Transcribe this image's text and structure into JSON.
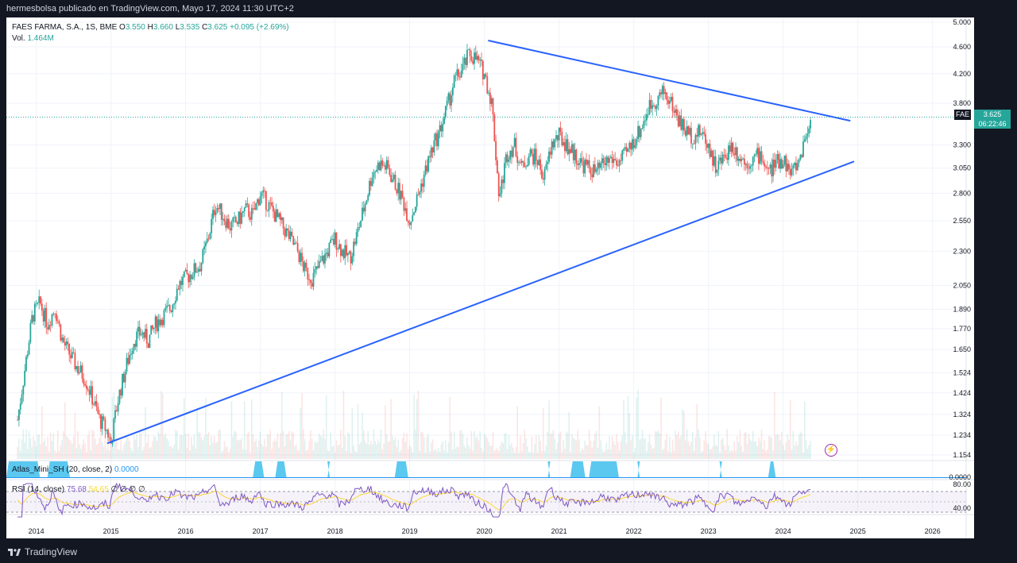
{
  "header": {
    "published": "hermesbolsa publicado en TradingView.com, Mayo 17, 2024 11:30 UTC+2"
  },
  "legend": {
    "title": "FAES FARMA, S.A., 1S, BME",
    "o_label": "O",
    "o": "3.550",
    "h_label": "H",
    "h": "3.660",
    "l_label": "L",
    "l": "3.535",
    "c_label": "C",
    "c": "3.625",
    "change": "+0.095 (+2.69%)",
    "vol_label": "Vol.",
    "vol": "1.464M"
  },
  "price_flag": {
    "symbol": "FAE",
    "price": "3.625",
    "countdown": "06:22:46"
  },
  "indicators": {
    "atlas": {
      "label": "Atlas_Mini_SH (20, close, 2)",
      "value": "0.0000",
      "axis": "0.0000"
    },
    "rsi": {
      "label": "RSI (14, close)",
      "rsi_value": "75.68",
      "ma_value": "54.65",
      "na_values": "∅ ∅ ∅ ∅",
      "axis_top": "80.00",
      "axis_bottom": "40.00"
    }
  },
  "footer": {
    "brand": "TradingView"
  },
  "colors": {
    "up": "#26a69a",
    "down": "#ef5350",
    "trendline": "#2962ff",
    "atlas": "#5bc8f0",
    "rsi": "#7e57c2",
    "rsi_ma": "#fdd835",
    "price_dotted": "#26a69a"
  },
  "chart_data": {
    "type": "candlestick",
    "title": "FAES FARMA, S.A., 1S, BME",
    "scale": "log",
    "y_ticks": [
      "5.000",
      "4.600",
      "4.200",
      "3.800",
      "3.300",
      "3.050",
      "2.800",
      "2.550",
      "2.300",
      "2.050",
      "1.890",
      "1.770",
      "1.650",
      "1.524",
      "1.424",
      "1.324",
      "1.234",
      "1.154"
    ],
    "x_ticks": [
      "2014",
      "2015",
      "2016",
      "2017",
      "2018",
      "2019",
      "2020",
      "2021",
      "2022",
      "2023",
      "2024",
      "2025",
      "2026"
    ],
    "close_path": [
      [
        "2013.75",
        1.3
      ],
      [
        "2013.85",
        1.55
      ],
      [
        "2013.95",
        1.85
      ],
      [
        "2014.05",
        1.93
      ],
      [
        "2014.15",
        1.8
      ],
      [
        "2014.25",
        1.9
      ],
      [
        "2014.35",
        1.7
      ],
      [
        "2014.45",
        1.62
      ],
      [
        "2014.55",
        1.55
      ],
      [
        "2014.65",
        1.5
      ],
      [
        "2014.75",
        1.4
      ],
      [
        "2014.85",
        1.3
      ],
      [
        "2014.95",
        1.25
      ],
      [
        "2015.00",
        1.2
      ],
      [
        "2015.05",
        1.3
      ],
      [
        "2015.10",
        1.4
      ],
      [
        "2015.20",
        1.55
      ],
      [
        "2015.30",
        1.7
      ],
      [
        "2015.40",
        1.75
      ],
      [
        "2015.50",
        1.7
      ],
      [
        "2015.60",
        1.8
      ],
      [
        "2015.70",
        1.85
      ],
      [
        "2015.80",
        1.9
      ],
      [
        "2015.90",
        2.05
      ],
      [
        "2016.00",
        2.1
      ],
      [
        "2016.10",
        2.15
      ],
      [
        "2016.20",
        2.2
      ],
      [
        "2016.30",
        2.4
      ],
      [
        "2016.40",
        2.7
      ],
      [
        "2016.50",
        2.6
      ],
      [
        "2016.60",
        2.5
      ],
      [
        "2016.70",
        2.55
      ],
      [
        "2016.80",
        2.65
      ],
      [
        "2016.90",
        2.6
      ],
      [
        "2017.00",
        2.8
      ],
      [
        "2017.10",
        2.7
      ],
      [
        "2017.20",
        2.6
      ],
      [
        "2017.30",
        2.5
      ],
      [
        "2017.40",
        2.4
      ],
      [
        "2017.50",
        2.3
      ],
      [
        "2017.60",
        2.15
      ],
      [
        "2017.70",
        2.1
      ],
      [
        "2017.80",
        2.2
      ],
      [
        "2017.90",
        2.3
      ],
      [
        "2018.00",
        2.4
      ],
      [
        "2018.10",
        2.3
      ],
      [
        "2018.20",
        2.25
      ],
      [
        "2018.30",
        2.45
      ],
      [
        "2018.40",
        2.7
      ],
      [
        "2018.50",
        3.0
      ],
      [
        "2018.60",
        3.1
      ],
      [
        "2018.70",
        3.05
      ],
      [
        "2018.80",
        2.9
      ],
      [
        "2018.90",
        2.75
      ],
      [
        "2019.00",
        2.55
      ],
      [
        "2019.10",
        2.75
      ],
      [
        "2019.20",
        3.0
      ],
      [
        "2019.30",
        3.25
      ],
      [
        "2019.40",
        3.45
      ],
      [
        "2019.50",
        3.75
      ],
      [
        "2019.60",
        4.1
      ],
      [
        "2019.70",
        4.25
      ],
      [
        "2019.80",
        4.5
      ],
      [
        "2019.90",
        4.4
      ],
      [
        "2020.00",
        4.2
      ],
      [
        "2020.10",
        3.8
      ],
      [
        "2020.20",
        2.75
      ],
      [
        "2020.30",
        3.2
      ],
      [
        "2020.40",
        3.3
      ],
      [
        "2020.50",
        3.05
      ],
      [
        "2020.60",
        3.2
      ],
      [
        "2020.70",
        3.15
      ],
      [
        "2020.80",
        2.95
      ],
      [
        "2020.90",
        3.3
      ],
      [
        "2021.00",
        3.4
      ],
      [
        "2021.10",
        3.3
      ],
      [
        "2021.20",
        3.2
      ],
      [
        "2021.30",
        3.1
      ],
      [
        "2021.40",
        3.05
      ],
      [
        "2021.50",
        3.0
      ],
      [
        "2021.60",
        3.1
      ],
      [
        "2021.70",
        3.15
      ],
      [
        "2021.80",
        3.1
      ],
      [
        "2021.90",
        3.2
      ],
      [
        "2022.00",
        3.35
      ],
      [
        "2022.10",
        3.5
      ],
      [
        "2022.20",
        3.75
      ],
      [
        "2022.30",
        3.85
      ],
      [
        "2022.40",
        3.95
      ],
      [
        "2022.50",
        3.8
      ],
      [
        "2022.60",
        3.6
      ],
      [
        "2022.70",
        3.45
      ],
      [
        "2022.80",
        3.4
      ],
      [
        "2022.90",
        3.45
      ],
      [
        "2023.00",
        3.3
      ],
      [
        "2023.10",
        3.05
      ],
      [
        "2023.20",
        3.15
      ],
      [
        "2023.30",
        3.3
      ],
      [
        "2023.40",
        3.2
      ],
      [
        "2023.50",
        3.1
      ],
      [
        "2023.60",
        3.15
      ],
      [
        "2023.70",
        3.2
      ],
      [
        "2023.80",
        3.0
      ],
      [
        "2023.90",
        3.1
      ],
      [
        "2024.00",
        3.15
      ],
      [
        "2024.10",
        3.0
      ],
      [
        "2024.20",
        3.1
      ],
      [
        "2024.30",
        3.4
      ],
      [
        "2024.38",
        3.625
      ]
    ],
    "trendlines": [
      {
        "name": "resistance",
        "from": [
          "2020.05",
          4.7
        ],
        "to": [
          "2024.90",
          3.58
        ]
      },
      {
        "name": "support",
        "from": [
          "2014.95",
          1.2
        ],
        "to": [
          "2024.95",
          3.12
        ]
      }
    ],
    "last_price": 3.625
  }
}
